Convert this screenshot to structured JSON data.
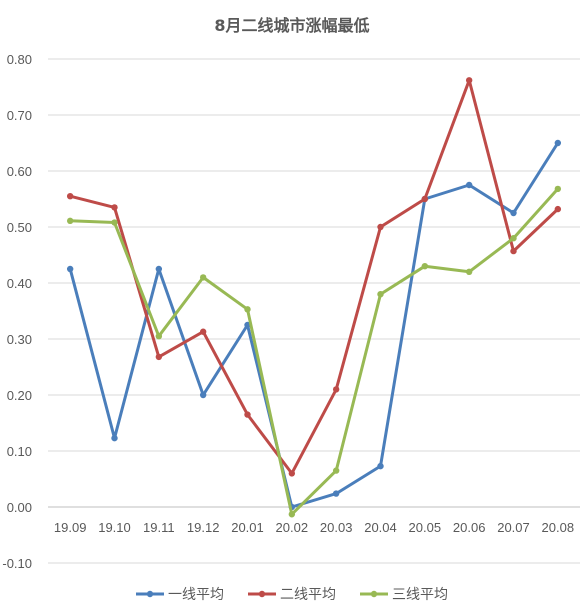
{
  "chart_data": {
    "type": "line",
    "title": "8月二线城市涨幅最低",
    "categories": [
      "19.09",
      "19.10",
      "19.11",
      "19.12",
      "20.01",
      "20.02",
      "20.03",
      "20.04",
      "20.05",
      "20.06",
      "20.07",
      "20.08"
    ],
    "ylim": [
      -0.1,
      0.8
    ],
    "yticks": [
      "0.80",
      "0.70",
      "0.60",
      "0.50",
      "0.40",
      "0.30",
      "0.20",
      "0.10",
      "0.00",
      "-0.10"
    ],
    "grid": true,
    "legend_position": "bottom",
    "series": [
      {
        "name": "一线平均",
        "color": "#4a7ebb",
        "values": [
          0.425,
          0.123,
          0.425,
          0.2,
          0.325,
          0.0,
          0.024,
          0.073,
          0.55,
          0.575,
          0.525,
          0.65
        ]
      },
      {
        "name": "二线平均",
        "color": "#be4b48",
        "values": [
          0.555,
          0.535,
          0.268,
          0.313,
          0.165,
          0.06,
          0.21,
          0.5,
          0.55,
          0.762,
          0.457,
          0.532
        ]
      },
      {
        "name": "三线平均",
        "color": "#98b954",
        "values": [
          0.511,
          0.508,
          0.305,
          0.41,
          0.353,
          -0.013,
          0.065,
          0.38,
          0.43,
          0.42,
          0.48,
          0.568
        ]
      }
    ]
  }
}
